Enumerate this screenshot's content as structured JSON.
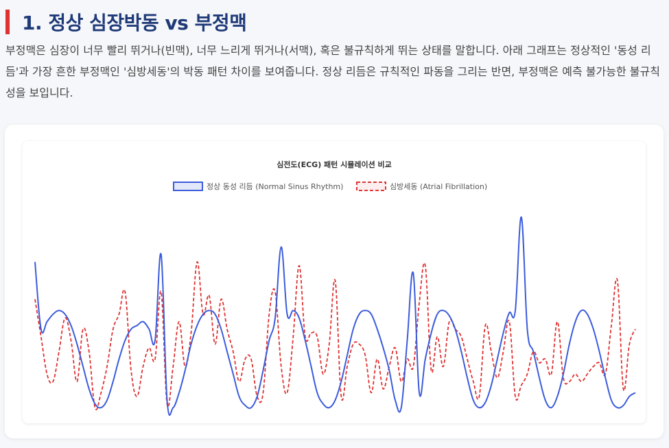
{
  "page": {
    "heading": "1. 정상 심장박동 vs 부정맥",
    "description": "부정맥은 심장이 너무 빨리 뛰거나(빈맥), 너무 느리게 뛰거나(서맥), 혹은 불규칙하게 뛰는 상태를 말합니다. 아래 그래프는 정상적인 '동성 리듬'과 가장 흔한 부정맥인 '심방세동'의 박동 패턴 차이를 보여줍니다. 정상 리듬은 규칙적인 파동을 그리는 반면, 부정맥은 예측 불가능한 불규칙성을 보입니다.",
    "accent_color": "#e03131",
    "heading_color": "#1f3a78"
  },
  "chart_data": {
    "type": "line",
    "title": "심전도(ECG) 패턴 시뮬레이션 비교",
    "legend_position": "top-center",
    "grid": false,
    "axes_visible": false,
    "x": [
      0,
      1,
      2,
      3,
      4,
      5,
      6,
      7,
      8,
      9,
      10,
      11,
      12,
      13,
      14,
      15,
      16,
      17,
      18,
      19,
      20,
      21,
      22,
      23,
      24,
      25,
      26,
      27,
      28,
      29,
      30,
      31,
      32,
      33,
      34,
      35,
      36,
      37,
      38,
      39,
      40,
      41,
      42,
      43,
      44,
      45,
      46,
      47,
      48,
      49,
      50,
      51,
      52,
      53,
      54,
      55,
      56,
      57,
      58,
      59,
      60,
      61,
      62,
      63,
      64,
      65,
      66,
      67,
      68,
      69,
      70,
      71,
      72,
      73,
      74,
      75,
      76,
      77,
      78,
      79,
      80,
      81,
      82,
      83,
      84,
      85,
      86,
      87,
      88,
      89,
      90,
      91,
      92,
      93,
      94,
      95,
      96,
      97,
      98,
      99,
      100
    ],
    "ylim": [
      -1.15,
      1.6
    ],
    "series": [
      {
        "name": "정상 동성 리듬 (Normal Sinus Rhythm)",
        "color": "#3b5bdb",
        "fill": "rgba(59,91,219,0.12)",
        "dash": false,
        "values": [
          0.9,
          0.0,
          0.1,
          0.2,
          0.25,
          0.2,
          0.05,
          -0.2,
          -0.5,
          -0.8,
          -1.0,
          -1.05,
          -0.95,
          -0.7,
          -0.4,
          -0.15,
          -0.0,
          0.05,
          0.1,
          0.0,
          -0.15,
          1.0,
          -0.95,
          -1.05,
          -0.85,
          -0.55,
          -0.2,
          0.05,
          0.2,
          0.25,
          0.2,
          0.0,
          -0.3,
          -0.6,
          -0.9,
          -1.02,
          -1.05,
          -0.9,
          -0.55,
          -0.15,
          0.15,
          1.1,
          0.2,
          0.25,
          0.15,
          -0.15,
          -0.5,
          -0.85,
          -1.0,
          -1.05,
          -0.95,
          -0.7,
          -0.35,
          0.0,
          0.2,
          0.25,
          0.2,
          0.0,
          -0.25,
          -0.55,
          -0.95,
          -1.05,
          -0.15,
          0.75,
          -0.85,
          -0.4,
          -0.05,
          0.2,
          0.25,
          0.18,
          0.0,
          -0.3,
          -0.65,
          -0.95,
          -1.05,
          -0.98,
          -0.75,
          -0.4,
          -0.05,
          0.22,
          0.25,
          1.5,
          0.0,
          -0.3,
          -0.65,
          -0.95,
          -1.05,
          -0.9,
          -0.6,
          -0.2,
          0.1,
          0.25,
          0.2,
          0.0,
          -0.3,
          -0.65,
          -0.95,
          -1.05,
          -1.02,
          -0.9,
          -0.85
        ]
      },
      {
        "name": "심방세동 (Atrial Fibrillation)",
        "color": "#e03131",
        "fill": "rgba(224,49,49,0.06)",
        "dash": true,
        "values": [
          0.4,
          -0.1,
          -0.6,
          -0.7,
          -0.3,
          0.15,
          -0.15,
          -0.7,
          0.0,
          -0.3,
          -1.05,
          -0.85,
          -0.5,
          0.0,
          0.2,
          0.5,
          -0.55,
          -0.9,
          -0.5,
          -0.25,
          -0.4,
          0.5,
          -1.0,
          -0.5,
          0.1,
          -0.5,
          -0.05,
          0.9,
          0.2,
          0.45,
          -0.2,
          0.4,
          0.0,
          -0.3,
          -0.7,
          -0.4,
          -0.4,
          -0.9,
          -0.85,
          0.2,
          0.5,
          -0.5,
          -0.85,
          -0.1,
          0.85,
          -0.1,
          -0.05,
          -0.1,
          -0.6,
          -0.2,
          0.65,
          -0.9,
          -0.5,
          -0.2,
          -0.2,
          -0.35,
          -0.85,
          -0.4,
          -0.8,
          -0.5,
          -0.25,
          -0.7,
          -0.4,
          -0.5,
          0.35,
          0.85,
          -0.55,
          -0.1,
          -0.5,
          0.1,
          0.0,
          -0.1,
          -0.4,
          -0.7,
          -0.9,
          0.05,
          -0.3,
          -0.65,
          -0.3,
          0.1,
          -0.9,
          -0.75,
          -0.6,
          -0.3,
          -0.45,
          -0.4,
          -0.6,
          0.1,
          -0.65,
          -0.7,
          -0.6,
          -0.7,
          -0.6,
          -0.5,
          -0.45,
          -0.6,
          0.05,
          0.65,
          -0.8,
          -0.2,
          0.0
        ]
      }
    ]
  }
}
